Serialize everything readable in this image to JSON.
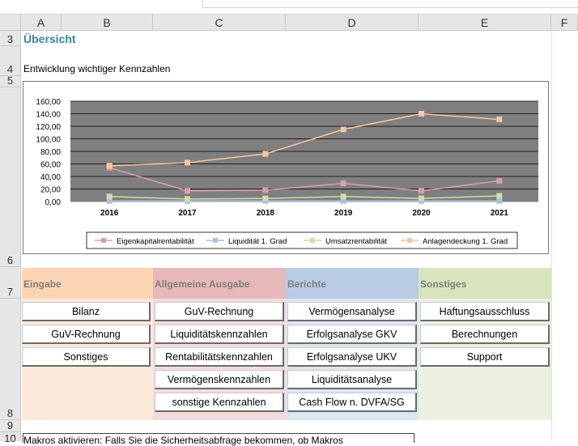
{
  "columns": [
    "A",
    "B",
    "C",
    "D",
    "E",
    "F"
  ],
  "rows": {
    "r3": "3",
    "r4": "4",
    "r5": "5",
    "r6": "6",
    "r7": "7",
    "r8": "8",
    "r9": "9",
    "r10": "10"
  },
  "sheet": {
    "title": "Übersicht",
    "subtitle": "Entwicklung wichtiger Kennzahlen",
    "bottom_text": "Makros aktivieren: Falls Sie die Sicherheitsabfrage bekommen, ob Makros"
  },
  "chart_data": {
    "type": "line",
    "categories": [
      "2016",
      "2017",
      "2018",
      "2019",
      "2020",
      "2021"
    ],
    "ylim": [
      0,
      160
    ],
    "yticks": [
      "0,00",
      "20,00",
      "40,00",
      "60,00",
      "80,00",
      "100,00",
      "120,00",
      "140,00",
      "160,00"
    ],
    "grid": true,
    "legend_position": "bottom",
    "series": [
      {
        "name": "Eigenkapitalrentabilität",
        "color": "#d9a0a5",
        "values": [
          54,
          17,
          18,
          29,
          17,
          33
        ]
      },
      {
        "name": "Liquidität 1. Grad",
        "color": "#a8c2e0",
        "values": [
          1,
          1,
          1,
          1,
          1,
          1
        ]
      },
      {
        "name": "Umsatzrentabilität",
        "color": "#cfdca8",
        "values": [
          8,
          4,
          5,
          8,
          5,
          9
        ]
      },
      {
        "name": "Anlagendeckung 1. Grad",
        "color": "#f4c7a1",
        "values": [
          57,
          62,
          76,
          115,
          140,
          131
        ]
      }
    ]
  },
  "sections": [
    {
      "title": "Eingabe",
      "header_color": "#fbd4b4",
      "body_color": "#fde9d9",
      "buttons": [
        "Bilanz",
        "GuV-Rechnung",
        "Sonstiges"
      ]
    },
    {
      "title": "Allgemeine Ausgabe",
      "header_color": "#e6b8b7",
      "body_color": "#f2dcdb",
      "buttons": [
        "GuV-Rechnung",
        "Liquiditätskennzahlen",
        "Rentabilitätskennzahlen",
        "Vermögenskennzahlen",
        "sonstige Kennzahlen"
      ]
    },
    {
      "title": "Berichte",
      "header_color": "#b8cce4",
      "body_color": "#dce6f1",
      "buttons": [
        "Vermögensanalyse",
        "Erfolgsanalyse GKV",
        "Erfolgsanalyse UKV",
        "Liquiditätsanalyse",
        "Cash Flow n. DVFA/SG"
      ]
    },
    {
      "title": "Sonstiges",
      "header_color": "#d8e4bc",
      "body_color": "#ebf1de",
      "buttons": [
        "Haftungsausschluss",
        "Berechnungen",
        "Support"
      ]
    }
  ]
}
